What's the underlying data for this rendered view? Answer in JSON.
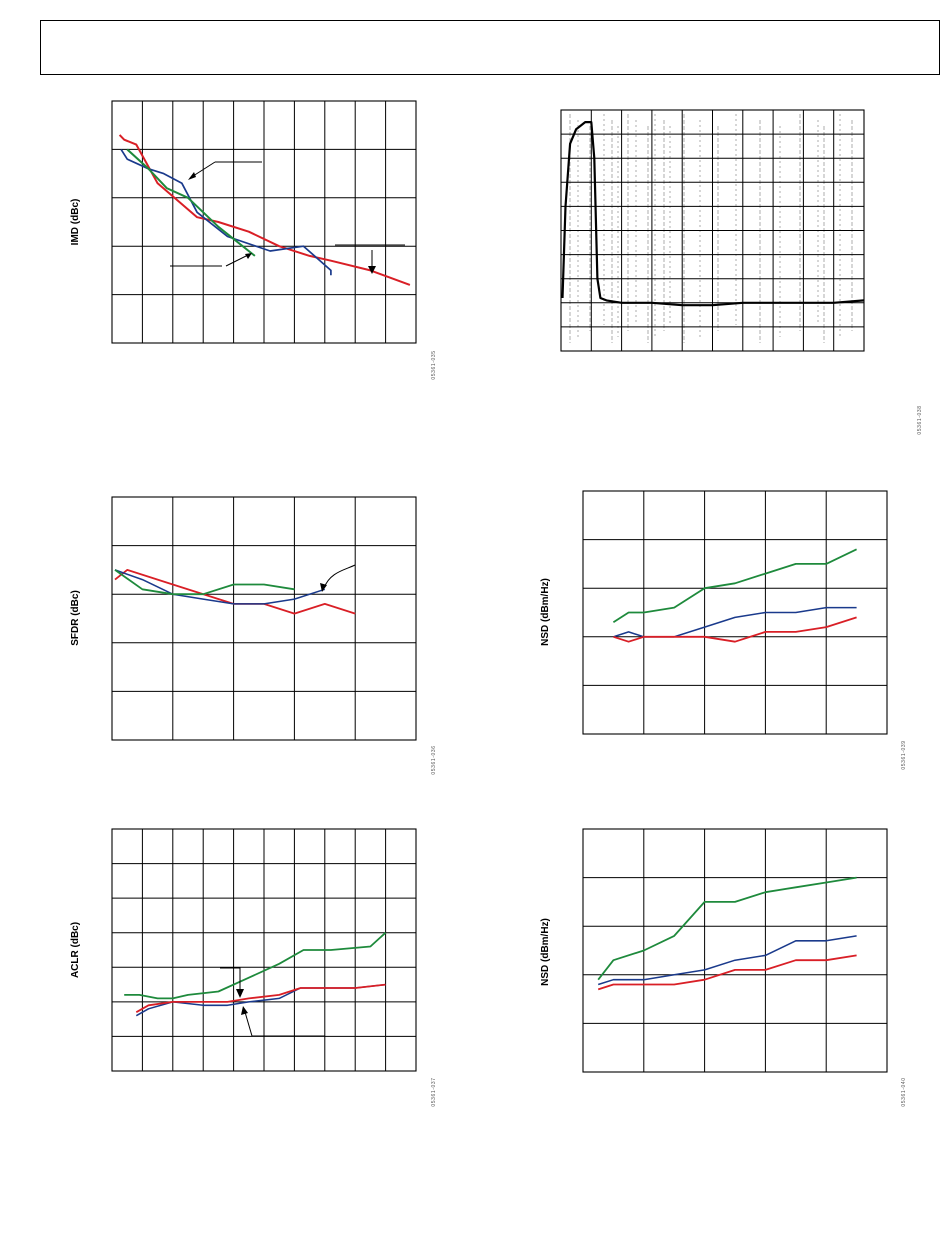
{
  "header": {
    "title": ""
  },
  "colors": {
    "red": "#d91f26",
    "blue": "#1a3a8c",
    "green": "#1e8a3c",
    "black": "#000000",
    "gray": "#999999"
  },
  "chart_data": [
    {
      "id": "05361-035",
      "type": "line",
      "ylabel": "IMD (dBc)",
      "xlabel": "",
      "xlim": [
        0,
        10
      ],
      "ylim": [
        0,
        5
      ],
      "x_divisions": 10,
      "y_divisions": 5,
      "series": [
        {
          "color": "red",
          "points": [
            [
              0.25,
              4.3
            ],
            [
              0.4,
              4.2
            ],
            [
              0.8,
              4.1
            ],
            [
              1.5,
              3.3
            ],
            [
              2.8,
              2.6
            ],
            [
              3.5,
              2.5
            ],
            [
              4.5,
              2.3
            ],
            [
              5.5,
              2.0
            ],
            [
              6.5,
              1.8
            ],
            [
              7.2,
              1.7
            ],
            [
              8.5,
              1.5
            ],
            [
              9.8,
              1.2
            ]
          ]
        },
        {
          "color": "blue",
          "points": [
            [
              0.3,
              4.0
            ],
            [
              0.5,
              3.8
            ],
            [
              1.2,
              3.6
            ],
            [
              1.7,
              3.5
            ],
            [
              2.3,
              3.3
            ],
            [
              2.8,
              2.7
            ],
            [
              3.8,
              2.2
            ],
            [
              5.2,
              1.9
            ],
            [
              6.3,
              2.0
            ],
            [
              7.2,
              1.5
            ],
            [
              7.2,
              1.4
            ]
          ]
        },
        {
          "color": "green",
          "points": [
            [
              0.5,
              4.0
            ],
            [
              1.2,
              3.6
            ],
            [
              1.8,
              3.2
            ],
            [
              2.5,
              3.0
            ],
            [
              3.5,
              2.4
            ],
            [
              4.7,
              1.8
            ]
          ]
        }
      ]
    },
    {
      "id": "05361-038",
      "type": "line",
      "ylabel": "",
      "xlabel": "",
      "xlim": [
        0,
        10
      ],
      "ylim": [
        0,
        10
      ],
      "x_divisions": 10,
      "y_divisions": 10,
      "series": [
        {
          "color": "black",
          "points": [
            [
              0.05,
              2.2
            ],
            [
              0.15,
              6.0
            ],
            [
              0.3,
              8.6
            ],
            [
              0.5,
              9.2
            ],
            [
              0.8,
              9.5
            ],
            [
              1.0,
              9.5
            ],
            [
              1.1,
              8.0
            ],
            [
              1.2,
              3.0
            ],
            [
              1.3,
              2.2
            ],
            [
              1.5,
              2.1
            ],
            [
              2.0,
              2.0
            ],
            [
              3.0,
              2.0
            ],
            [
              4.0,
              1.9
            ],
            [
              5.0,
              1.9
            ],
            [
              6.0,
              2.0
            ],
            [
              7.0,
              2.0
            ],
            [
              8.0,
              2.0
            ],
            [
              9.0,
              2.0
            ],
            [
              10.0,
              2.1
            ]
          ]
        }
      ]
    },
    {
      "id": "05361-036",
      "type": "line",
      "ylabel": "SFDR (dBc)",
      "xlabel": "",
      "xlim": [
        0,
        5
      ],
      "ylim": [
        0,
        5
      ],
      "x_divisions": 5,
      "y_divisions": 5,
      "series": [
        {
          "color": "red",
          "points": [
            [
              0.05,
              3.3
            ],
            [
              0.25,
              3.5
            ],
            [
              1.0,
              3.2
            ],
            [
              2.0,
              2.8
            ],
            [
              2.5,
              2.8
            ],
            [
              3.0,
              2.6
            ],
            [
              3.5,
              2.8
            ],
            [
              4.0,
              2.6
            ]
          ]
        },
        {
          "color": "blue",
          "points": [
            [
              0.05,
              3.5
            ],
            [
              0.5,
              3.3
            ],
            [
              1.0,
              3.0
            ],
            [
              1.5,
              2.9
            ],
            [
              2.0,
              2.8
            ],
            [
              2.5,
              2.8
            ],
            [
              3.0,
              2.9
            ],
            [
              3.5,
              3.1
            ]
          ]
        },
        {
          "color": "green",
          "points": [
            [
              0.05,
              3.5
            ],
            [
              0.5,
              3.1
            ],
            [
              1.0,
              3.0
            ],
            [
              1.5,
              3.0
            ],
            [
              2.0,
              3.2
            ],
            [
              2.5,
              3.2
            ],
            [
              3.0,
              3.1
            ]
          ]
        }
      ]
    },
    {
      "id": "05361-039",
      "type": "line",
      "ylabel": "NSD (dBm/Hz)",
      "xlabel": "",
      "xlim": [
        0,
        5
      ],
      "ylim": [
        0,
        5
      ],
      "x_divisions": 5,
      "y_divisions": 5,
      "series": [
        {
          "color": "green",
          "points": [
            [
              0.5,
              2.3
            ],
            [
              0.75,
              2.5
            ],
            [
              1.0,
              2.5
            ],
            [
              1.5,
              2.6
            ],
            [
              2.0,
              3.0
            ],
            [
              2.5,
              3.1
            ],
            [
              3.0,
              3.3
            ],
            [
              3.5,
              3.5
            ],
            [
              4.0,
              3.5
            ],
            [
              4.5,
              3.8
            ]
          ]
        },
        {
          "color": "blue",
          "points": [
            [
              0.5,
              2.0
            ],
            [
              0.75,
              2.1
            ],
            [
              1.0,
              2.0
            ],
            [
              1.5,
              2.0
            ],
            [
              2.0,
              2.2
            ],
            [
              2.5,
              2.4
            ],
            [
              3.0,
              2.5
            ],
            [
              3.5,
              2.5
            ],
            [
              4.0,
              2.6
            ],
            [
              4.5,
              2.6
            ]
          ]
        },
        {
          "color": "red",
          "points": [
            [
              0.5,
              2.0
            ],
            [
              0.75,
              1.9
            ],
            [
              1.0,
              2.0
            ],
            [
              1.5,
              2.0
            ],
            [
              2.0,
              2.0
            ],
            [
              2.5,
              1.9
            ],
            [
              3.0,
              2.1
            ],
            [
              3.5,
              2.1
            ],
            [
              4.0,
              2.2
            ],
            [
              4.5,
              2.4
            ]
          ]
        }
      ]
    },
    {
      "id": "05361-037",
      "type": "line",
      "ylabel": "ACLR (dBc)",
      "xlabel": "",
      "xlim": [
        0,
        10
      ],
      "ylim": [
        0,
        7
      ],
      "x_divisions": 10,
      "y_divisions": 7,
      "series": [
        {
          "color": "green",
          "points": [
            [
              0.4,
              2.2
            ],
            [
              0.9,
              2.2
            ],
            [
              1.5,
              2.1
            ],
            [
              2.0,
              2.1
            ],
            [
              2.5,
              2.2
            ],
            [
              3.5,
              2.3
            ],
            [
              4.5,
              2.7
            ],
            [
              5.5,
              3.1
            ],
            [
              6.3,
              3.5
            ],
            [
              7.2,
              3.5
            ],
            [
              8.5,
              3.6
            ],
            [
              9.0,
              4.0
            ]
          ]
        },
        {
          "color": "blue",
          "points": [
            [
              0.8,
              1.6
            ],
            [
              1.2,
              1.8
            ],
            [
              2.0,
              2.0
            ],
            [
              3.0,
              1.9
            ],
            [
              3.8,
              1.9
            ],
            [
              4.5,
              2.0
            ],
            [
              5.5,
              2.1
            ],
            [
              6.2,
              2.4
            ],
            [
              8.0,
              2.4
            ],
            [
              9.0,
              2.5
            ]
          ]
        },
        {
          "color": "red",
          "points": [
            [
              0.8,
              1.7
            ],
            [
              1.2,
              1.9
            ],
            [
              2.0,
              2.0
            ],
            [
              3.0,
              2.0
            ],
            [
              3.8,
              2.0
            ],
            [
              4.5,
              2.1
            ],
            [
              5.5,
              2.2
            ],
            [
              6.2,
              2.4
            ],
            [
              8.0,
              2.4
            ],
            [
              9.0,
              2.5
            ]
          ]
        }
      ]
    },
    {
      "id": "05361-040",
      "type": "line",
      "ylabel": "NSD (dBm/Hz)",
      "xlabel": "",
      "xlim": [
        0,
        5
      ],
      "ylim": [
        0,
        5
      ],
      "x_divisions": 5,
      "y_divisions": 5,
      "series": [
        {
          "color": "green",
          "points": [
            [
              0.25,
              1.9
            ],
            [
              0.5,
              2.3
            ],
            [
              1.0,
              2.5
            ],
            [
              1.5,
              2.8
            ],
            [
              2.0,
              3.5
            ],
            [
              2.5,
              3.5
            ],
            [
              3.0,
              3.7
            ],
            [
              3.5,
              3.8
            ],
            [
              4.0,
              3.9
            ],
            [
              4.5,
              4.0
            ]
          ]
        },
        {
          "color": "blue",
          "points": [
            [
              0.25,
              1.8
            ],
            [
              0.5,
              1.9
            ],
            [
              1.0,
              1.9
            ],
            [
              1.5,
              2.0
            ],
            [
              2.0,
              2.1
            ],
            [
              2.5,
              2.3
            ],
            [
              3.0,
              2.4
            ],
            [
              3.5,
              2.7
            ],
            [
              4.0,
              2.7
            ],
            [
              4.5,
              2.8
            ]
          ]
        },
        {
          "color": "red",
          "points": [
            [
              0.25,
              1.7
            ],
            [
              0.5,
              1.8
            ],
            [
              1.0,
              1.8
            ],
            [
              1.5,
              1.8
            ],
            [
              2.0,
              1.9
            ],
            [
              2.5,
              2.1
            ],
            [
              3.0,
              2.1
            ],
            [
              3.5,
              2.3
            ],
            [
              4.0,
              2.3
            ],
            [
              4.5,
              2.4
            ]
          ]
        }
      ]
    }
  ]
}
